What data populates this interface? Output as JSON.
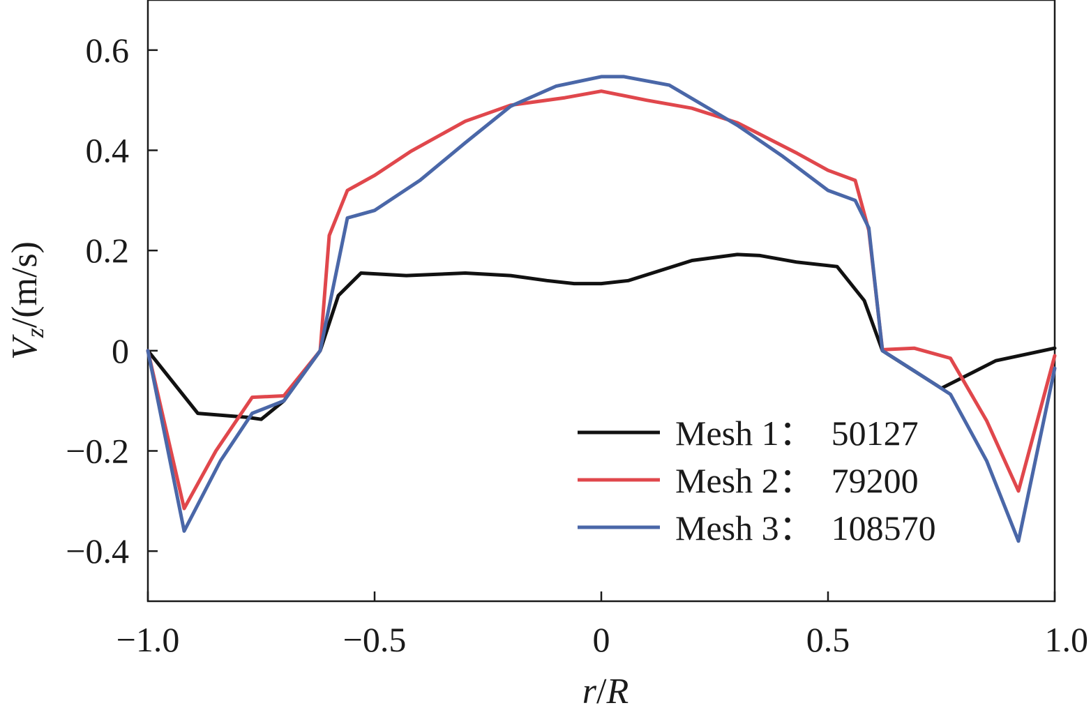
{
  "chart_data": {
    "type": "line",
    "title": "",
    "xlabel": {
      "main": "r",
      "sep": "/",
      "ref": "R"
    },
    "ylabel": {
      "main": "V",
      "sub": "z",
      "unit": "/(m/s)"
    },
    "xlim": [
      -1.0,
      1.0
    ],
    "ylim": [
      -0.5,
      0.7
    ],
    "x_ticks": [
      {
        "value": -1.0,
        "label": "−1.0"
      },
      {
        "value": -0.5,
        "label": "−0.5"
      },
      {
        "value": 0,
        "label": "0"
      },
      {
        "value": 0.5,
        "label": "0.5"
      },
      {
        "value": 1.0,
        "label": "1.0"
      }
    ],
    "y_ticks": [
      {
        "value": -0.4,
        "label": "−0.4"
      },
      {
        "value": -0.2,
        "label": "−0.2"
      },
      {
        "value": 0,
        "label": "0"
      },
      {
        "value": 0.2,
        "label": "0.2"
      },
      {
        "value": 0.4,
        "label": "0.4"
      },
      {
        "value": 0.6,
        "label": "0.6"
      }
    ],
    "grid": false,
    "legend_position": "bottom-right",
    "series": [
      {
        "name": "Mesh 1：  50127",
        "color": "#111111",
        "x": [
          -1.0,
          -0.89,
          -0.78,
          -0.75,
          -0.7,
          -0.62,
          -0.58,
          -0.53,
          -0.43,
          -0.3,
          -0.2,
          -0.12,
          -0.06,
          0.0,
          0.06,
          0.2,
          0.3,
          0.35,
          0.43,
          0.52,
          0.58,
          0.62,
          0.75,
          0.87,
          1.0
        ],
        "y": [
          0.0,
          -0.125,
          -0.133,
          -0.137,
          -0.1,
          0.0,
          0.11,
          0.155,
          0.15,
          0.155,
          0.15,
          0.14,
          0.134,
          0.134,
          0.14,
          0.18,
          0.192,
          0.19,
          0.177,
          0.168,
          0.1,
          0.0,
          -0.075,
          -0.02,
          0.005
        ]
      },
      {
        "name": "Mesh 2：  79200",
        "color": "#e0474c",
        "x": [
          -1.0,
          -0.92,
          -0.85,
          -0.77,
          -0.7,
          -0.62,
          -0.6,
          -0.56,
          -0.5,
          -0.42,
          -0.3,
          -0.2,
          -0.08,
          0.0,
          0.1,
          0.2,
          0.3,
          0.43,
          0.5,
          0.56,
          0.59,
          0.62,
          0.69,
          0.77,
          0.85,
          0.92,
          1.0
        ],
        "y": [
          0.0,
          -0.315,
          -0.2,
          -0.093,
          -0.09,
          0.0,
          0.23,
          0.32,
          0.35,
          0.398,
          0.458,
          0.49,
          0.505,
          0.518,
          0.5,
          0.484,
          0.455,
          0.395,
          0.36,
          0.34,
          0.24,
          0.002,
          0.005,
          -0.015,
          -0.14,
          -0.28,
          -0.01
        ]
      },
      {
        "name": "Mesh 3：  108570",
        "color": "#4a67a8",
        "x": [
          -1.0,
          -0.92,
          -0.84,
          -0.77,
          -0.7,
          -0.62,
          -0.56,
          -0.5,
          -0.4,
          -0.3,
          -0.2,
          -0.1,
          0.0,
          0.05,
          0.15,
          0.3,
          0.4,
          0.5,
          0.56,
          0.59,
          0.62,
          0.69,
          0.77,
          0.85,
          0.92,
          1.0
        ],
        "y": [
          0.0,
          -0.36,
          -0.22,
          -0.125,
          -0.1,
          0.0,
          0.265,
          0.28,
          0.34,
          0.415,
          0.488,
          0.528,
          0.547,
          0.547,
          0.53,
          0.45,
          0.388,
          0.32,
          0.3,
          0.245,
          0.0,
          -0.04,
          -0.087,
          -0.22,
          -0.38,
          -0.035
        ]
      }
    ]
  }
}
